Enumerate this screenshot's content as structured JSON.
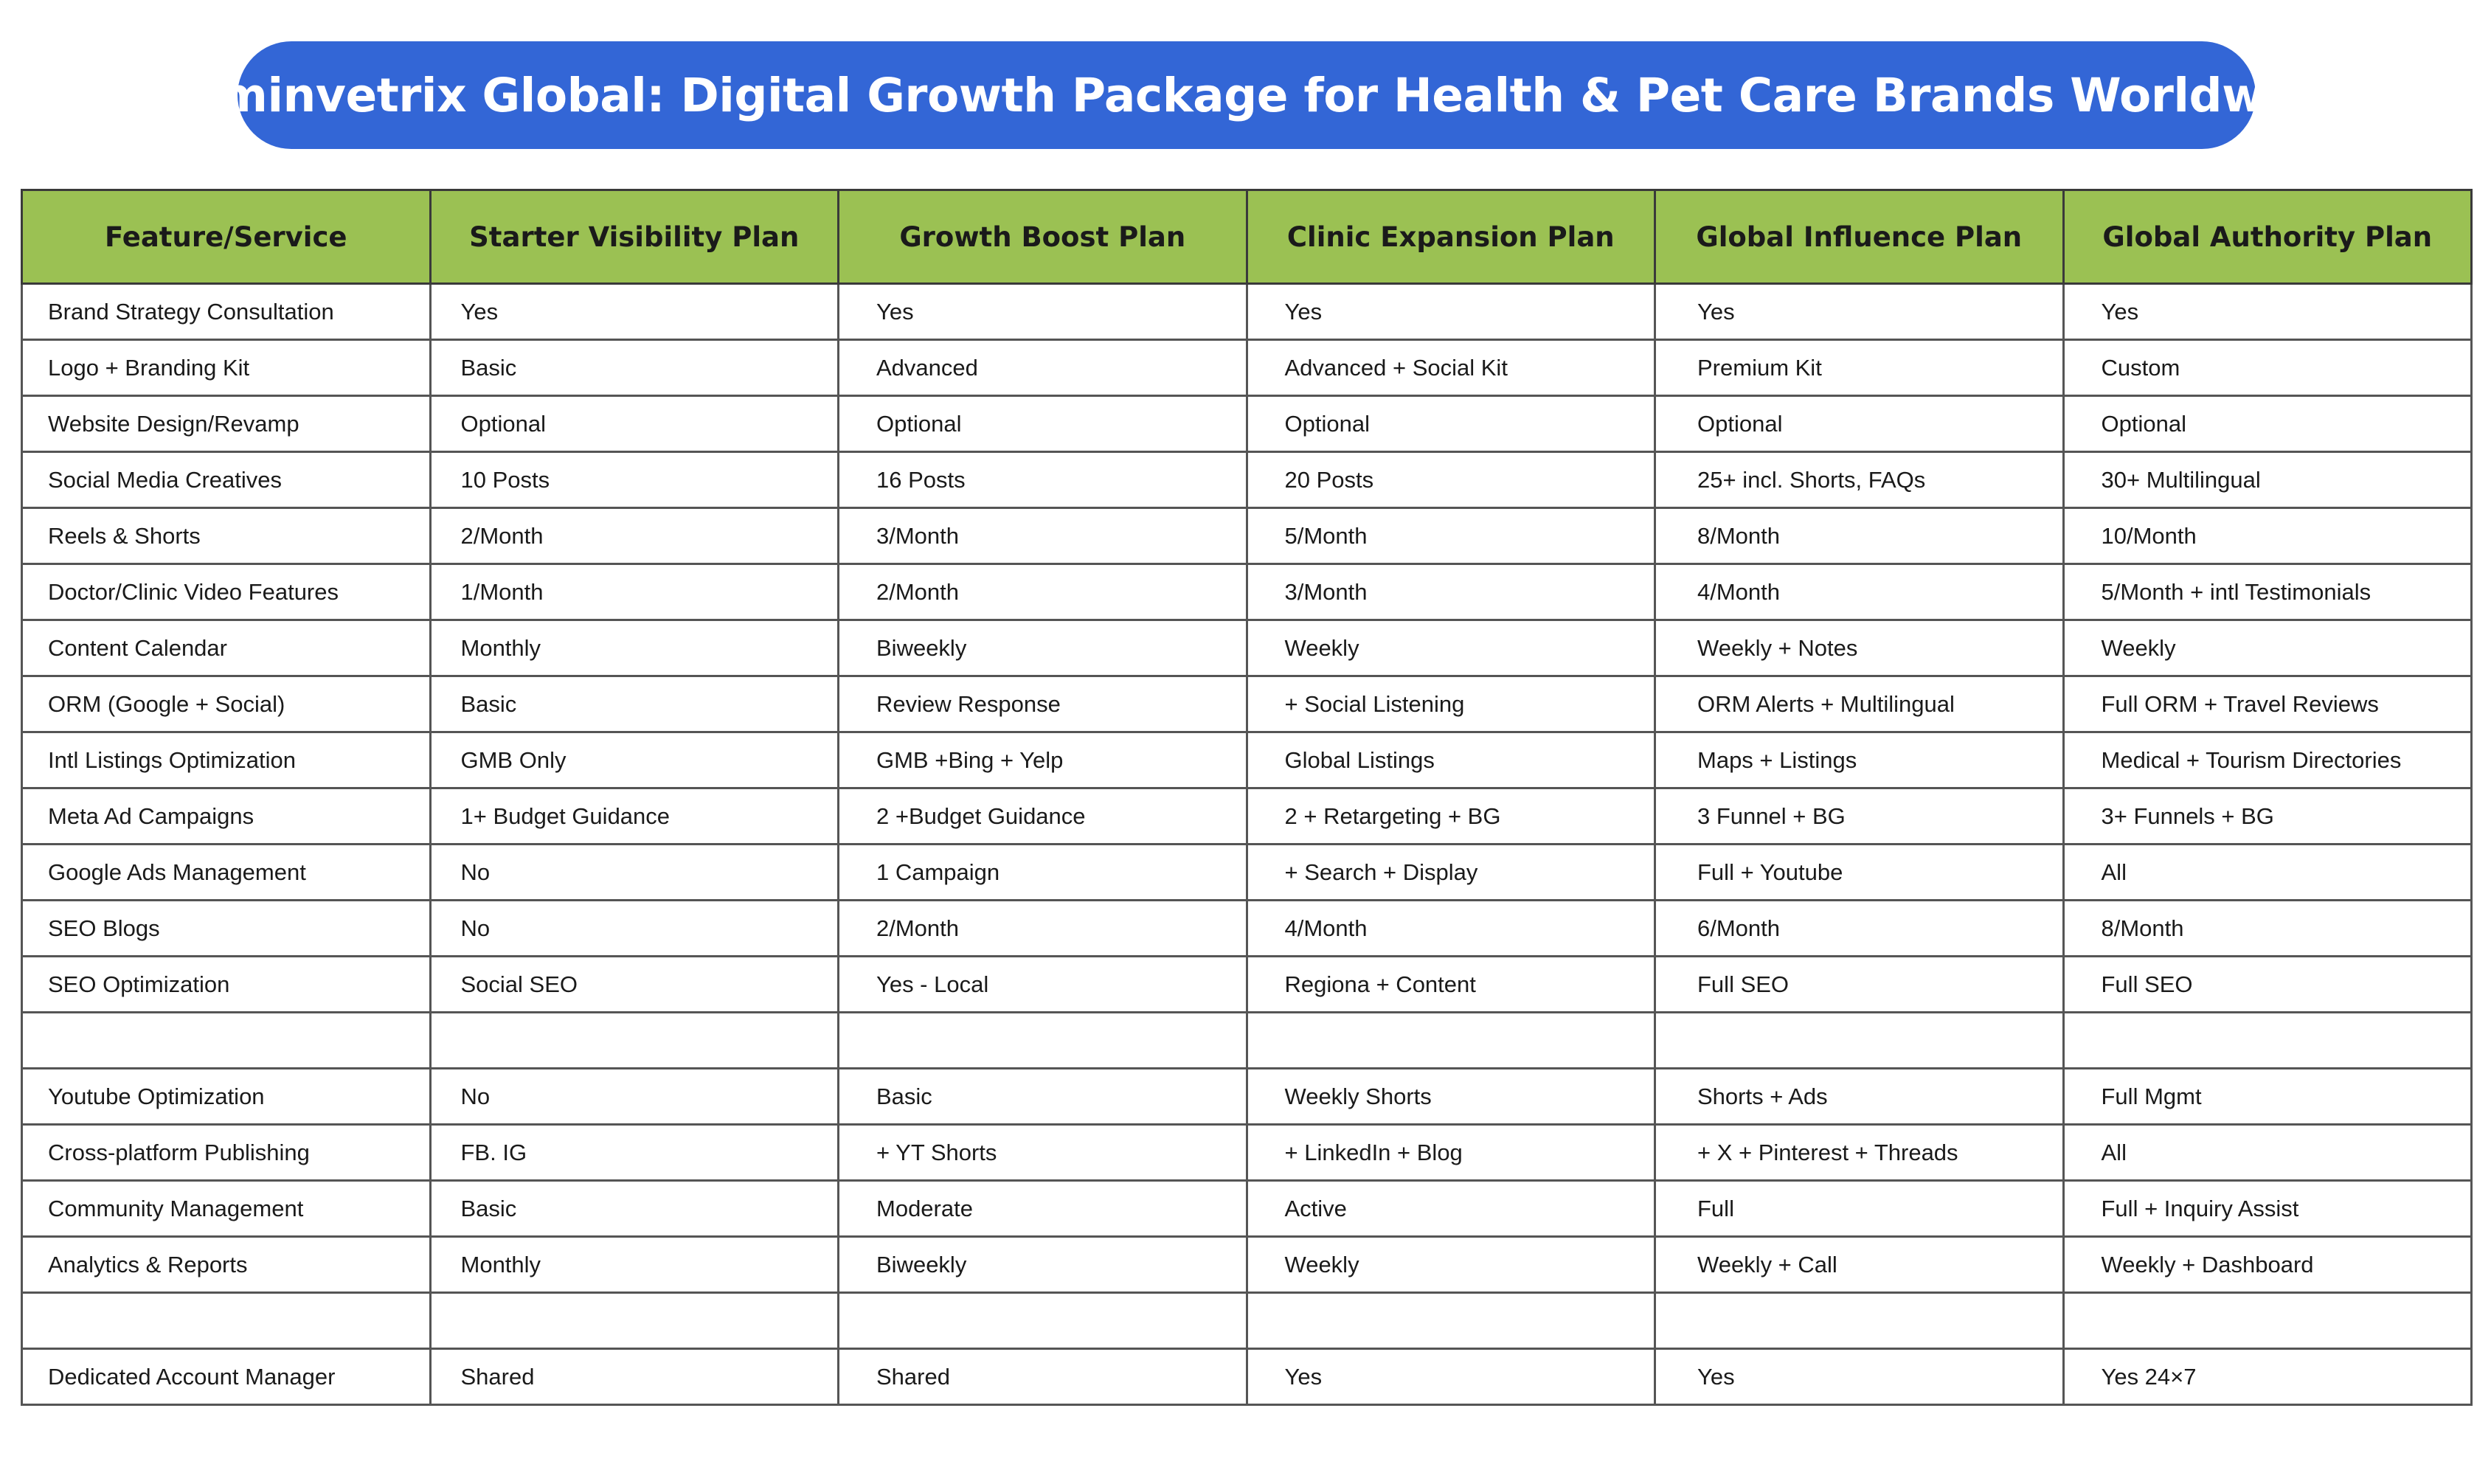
{
  "title": "Hominvetrix Global: Digital Growth Package for Health & Pet Care Brands Worldwide",
  "table": {
    "headers": [
      "Feature/Service",
      "Starter Visibility Plan",
      "Growth Boost Plan",
      "Clinic Expansion Plan",
      "Global Influence Plan",
      "Global Authority Plan"
    ],
    "rows": [
      [
        "Brand Strategy Consultation",
        "Yes",
        "Yes",
        "Yes",
        "Yes",
        "Yes"
      ],
      [
        "Logo + Branding Kit",
        "Basic",
        "Advanced",
        "Advanced + Social Kit",
        "Premium Kit",
        "Custom"
      ],
      [
        "Website Design/Revamp",
        "Optional",
        "Optional",
        "Optional",
        "Optional",
        "Optional"
      ],
      [
        "Social Media Creatives",
        "10 Posts",
        "16 Posts",
        "20 Posts",
        "25+ incl. Shorts, FAQs",
        "30+ Multilingual"
      ],
      [
        "Reels & Shorts",
        "2/Month",
        "3/Month",
        "5/Month",
        "8/Month",
        "10/Month"
      ],
      [
        "Doctor/Clinic Video Features",
        "1/Month",
        "2/Month",
        "3/Month",
        "4/Month",
        "5/Month + intl Testimonials"
      ],
      [
        "Content Calendar",
        "Monthly",
        "Biweekly",
        "Weekly",
        "Weekly + Notes",
        "Weekly"
      ],
      [
        "ORM (Google + Social)",
        "Basic",
        "Review Response",
        "+  Social Listening",
        "ORM Alerts + Multilingual",
        "Full ORM + Travel Reviews"
      ],
      [
        "Intl Listings Optimization",
        "GMB Only",
        "GMB +Bing + Yelp",
        "Global Listings",
        "Maps + Listings",
        "Medical + Tourism Directories"
      ],
      [
        "Meta Ad Campaigns",
        "1+ Budget Guidance",
        "2 +Budget Guidance",
        "2 + Retargeting + BG",
        "3 Funnel + BG",
        "3+ Funnels + BG"
      ],
      [
        "Google Ads Management",
        "No",
        "1 Campaign",
        "+ Search + Display",
        "Full + Youtube",
        "All"
      ],
      [
        "SEO Blogs",
        "No",
        "2/Month",
        "4/Month",
        "6/Month",
        "8/Month"
      ],
      [
        "SEO Optimization",
        "Social SEO",
        "Yes - Local",
        "Regiona + Content",
        "Full SEO",
        "Full  SEO"
      ],
      [
        "",
        "",
        "",
        "",
        "",
        ""
      ],
      [
        "Youtube Optimization",
        "No",
        "Basic",
        "Weekly Shorts",
        "Shorts + Ads",
        "Full Mgmt"
      ],
      [
        "Cross-platform Publishing",
        "FB. IG",
        "+  YT Shorts",
        "+  LinkedIn + Blog",
        "+  X + Pinterest + Threads",
        "All"
      ],
      [
        "Community Management",
        "Basic",
        "Moderate",
        "Active",
        "Full",
        "Full + Inquiry Assist"
      ],
      [
        "Analytics & Reports",
        "Monthly",
        "Biweekly",
        "Weekly",
        "Weekly + Call",
        "Weekly + Dashboard"
      ],
      [
        "",
        "",
        "",
        "",
        "",
        ""
      ],
      [
        "Dedicated Account Manager",
        "Shared",
        "Shared",
        "Yes",
        "Yes",
        "Yes 24×7"
      ]
    ]
  },
  "colors": {
    "title_bg": "#3366d6",
    "header_bg": "#9bc153",
    "border": "#555555"
  }
}
